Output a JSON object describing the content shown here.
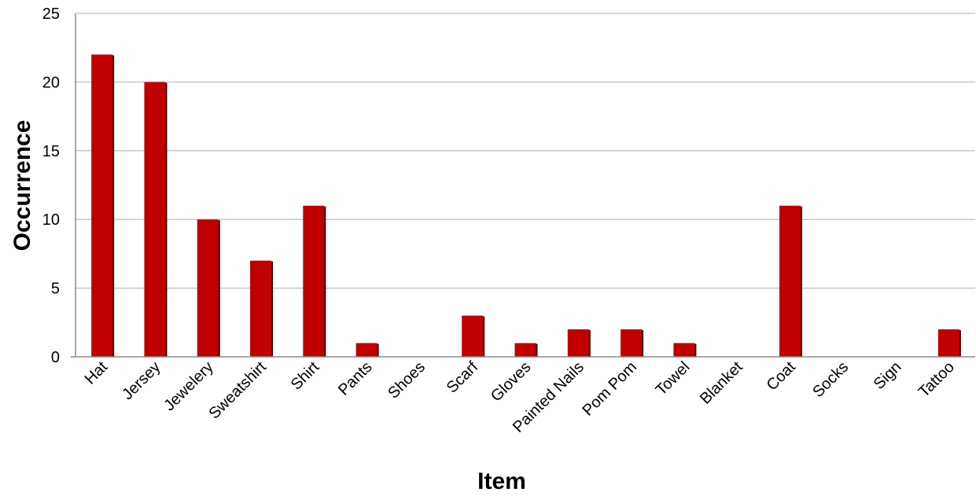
{
  "chart_data": {
    "type": "bar",
    "title": "",
    "xlabel": "Item",
    "ylabel": "Occurrence",
    "categories": [
      "Hat",
      "Jersey",
      "Jewelery",
      "Sweatshirt",
      "Shirt",
      "Pants",
      "Shoes",
      "Scarf",
      "Gloves",
      "Painted Nails",
      "Pom Pom",
      "Towel",
      "Blanket",
      "Coat",
      "Socks",
      "Sign",
      "Tattoo"
    ],
    "values": [
      22,
      20,
      10,
      7,
      11,
      1,
      0,
      3,
      1,
      2,
      2,
      1,
      0,
      11,
      0,
      0,
      2
    ],
    "ylim": [
      0,
      25
    ],
    "yticks": [
      0,
      5,
      10,
      15,
      20,
      25
    ],
    "grid": true,
    "legend": "none",
    "colors": {
      "bar": "#c00000",
      "bar_shadow": "#3a0000",
      "grid": "#c8c8c8",
      "axis": "#8c8c8c"
    }
  }
}
